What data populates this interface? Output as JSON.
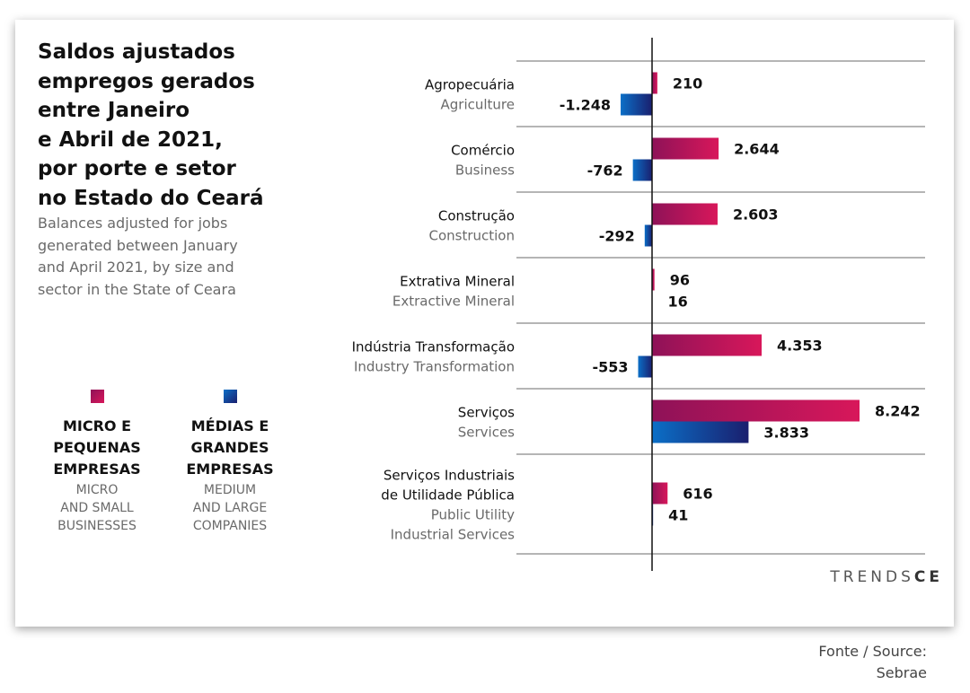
{
  "title": "Saldos ajustados\nempregos gerados\nentre Janeiro\ne Abril de 2021,\npor porte e setor\nno Estado do Ceará",
  "subtitle": "Balances adjusted for jobs\ngenerated between January\nand April 2021, by size and\nsector in the State of Ceara",
  "legend": [
    {
      "label_pt": "MICRO E\nPEQUENAS\nEMPRESAS",
      "label_en": "MICRO\nAND SMALL\nBUSINESSES",
      "color": "#c2185b"
    },
    {
      "label_pt": "MÉDIAS E\nGRANDES\nEMPRESAS",
      "label_en": "MEDIUM\nAND LARGE\nCOMPANIES",
      "color": "#0d47a1"
    }
  ],
  "logo": {
    "main": "TRENDS",
    "accent": "CE"
  },
  "source": "Fonte / Source:\nSebrae",
  "colors": {
    "micro_start": "#8e1258",
    "micro_end": "#d8175a",
    "medium_start": "#0b6fc7",
    "medium_end": "#1a1f6e",
    "separator": "#b5b5b5",
    "axis": "#111111",
    "label_pt": "#111111",
    "label_en": "#6a6a6a"
  },
  "chart_data": {
    "type": "bar",
    "orientation": "horizontal",
    "categories": [
      {
        "pt": [
          "Agropecuária"
        ],
        "en": [
          "Agriculture"
        ]
      },
      {
        "pt": [
          "Comércio"
        ],
        "en": [
          "Business"
        ]
      },
      {
        "pt": [
          "Construção"
        ],
        "en": [
          "Construction"
        ]
      },
      {
        "pt": [
          "Extrativa Mineral"
        ],
        "en": [
          "Extractive Mineral"
        ]
      },
      {
        "pt": [
          "Indústria Transformação"
        ],
        "en": [
          "Industry Transformation"
        ]
      },
      {
        "pt": [
          "Serviços"
        ],
        "en": [
          "Services"
        ]
      },
      {
        "pt": [
          "Serviços Industriais",
          "de Utilidade Pública"
        ],
        "en": [
          "Public Utility",
          "Industrial Services"
        ]
      }
    ],
    "series": [
      {
        "name": "MICRO E PEQUENAS EMPRESAS",
        "values": [
          210,
          2644,
          2603,
          96,
          4353,
          8242,
          616
        ],
        "labels": [
          "210",
          "2.644",
          "2.603",
          "96",
          "4.353",
          "8.242",
          "616"
        ]
      },
      {
        "name": "MÉDIAS E GRANDES EMPRESAS",
        "values": [
          -1248,
          -762,
          -292,
          16,
          -553,
          3833,
          41
        ],
        "labels": [
          "-1.248",
          "-762",
          "-292",
          "16",
          "-553",
          "3.833",
          "41"
        ]
      }
    ],
    "xlim": [
      -2000,
      8242
    ],
    "grid": false,
    "legend_position": "left"
  }
}
